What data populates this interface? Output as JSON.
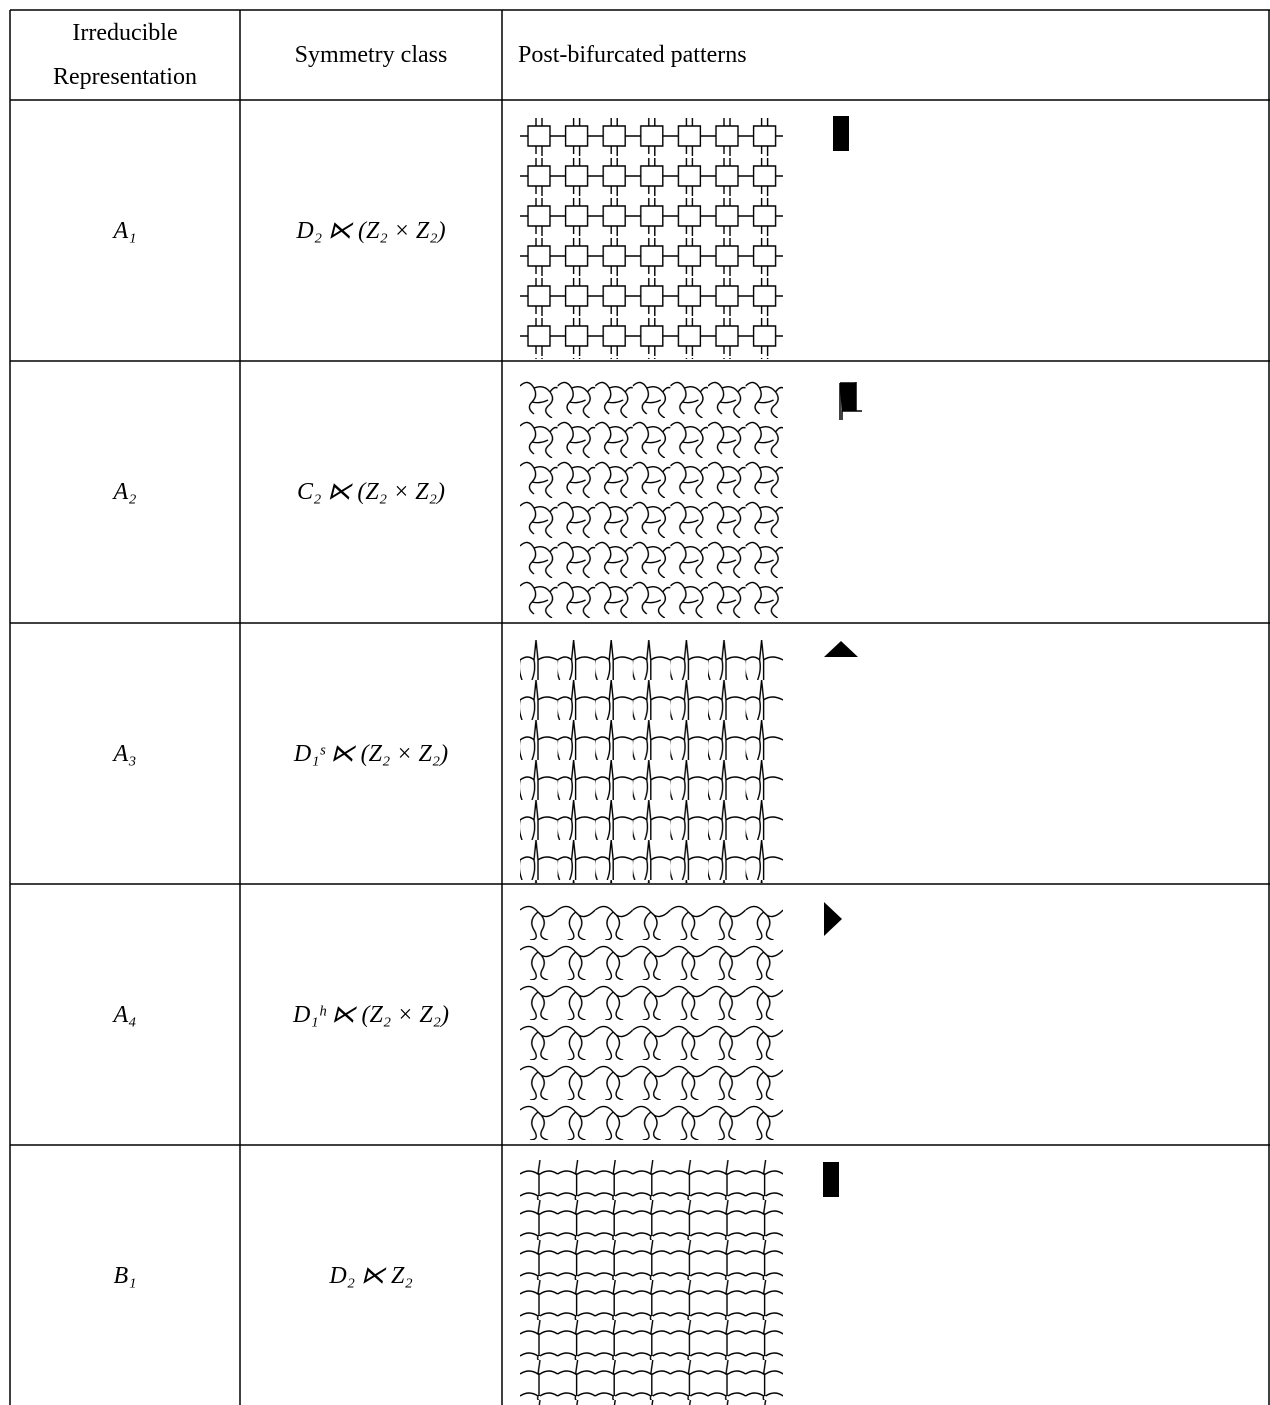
{
  "table": {
    "header": [
      "Irreducible Representation",
      "Symmetry class",
      "Post-bifurcated patterns"
    ],
    "rows": [
      [
        "A₁",
        "D₂ ⋉ (Z₂ × Z₂)"
      ],
      [
        "A₂",
        "C₂ ⋉ (Z₂ × Z₂)"
      ],
      [
        "A₃",
        "D₁ˢ ⋉ (Z₂ × Z₂)"
      ],
      [
        "A₄",
        "D₁ʰ ⋉ (Z₂ × Z₂)"
      ],
      [
        "B₁",
        "D₂ ⋉ Z₂"
      ]
    ]
  }
}
